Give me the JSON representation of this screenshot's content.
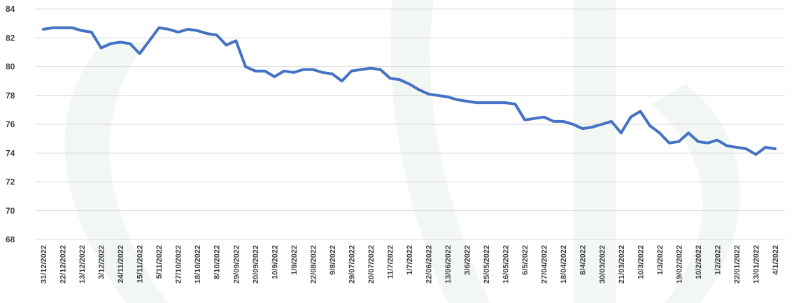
{
  "chart_data": {
    "type": "line",
    "categories": [
      "31/12/2022",
      null,
      "22/12/2022",
      null,
      "13/12/2022",
      null,
      "3/12/2022",
      null,
      "24/11/2022",
      null,
      "15/11/2022",
      null,
      "5/11/2022",
      null,
      "27/10/2022",
      null,
      "18/10/2022",
      null,
      "8/10/2022",
      null,
      "29/09/2022",
      null,
      "20/09/2022",
      null,
      "10/9/2022",
      null,
      "1/9/2022",
      null,
      "22/08/2022",
      null,
      "9/8/2022",
      null,
      "29/07/2022",
      null,
      "20/07/2022",
      null,
      "11/7/2022",
      null,
      "1/7/2022",
      null,
      "22/06/2022",
      null,
      "13/06/2022",
      null,
      "3/6/2022",
      null,
      "25/05/2022",
      null,
      "16/05/2022",
      null,
      "6/5/2022",
      null,
      "27/04/2022",
      null,
      "18/04/2022",
      null,
      "8/4/2022",
      null,
      "30/03/2022",
      null,
      "21/03/2022",
      null,
      "10/3/2022",
      null,
      "1/3/2022",
      null,
      "19/02/2022",
      null,
      "10/2/2022",
      null,
      "1/2/2022",
      null,
      "22/01/2022",
      null,
      "13/01/2022",
      null,
      "4/1/2022"
    ],
    "values": [
      82.6,
      82.7,
      82.7,
      82.7,
      82.5,
      82.4,
      81.3,
      81.6,
      81.7,
      81.6,
      80.9,
      81.8,
      82.7,
      82.6,
      82.4,
      82.6,
      82.5,
      82.3,
      82.2,
      81.5,
      81.8,
      80.0,
      79.7,
      79.7,
      79.3,
      79.7,
      79.6,
      79.8,
      79.8,
      79.6,
      79.5,
      79.0,
      79.7,
      79.8,
      79.9,
      79.8,
      79.2,
      79.1,
      78.8,
      78.4,
      78.1,
      78.0,
      77.9,
      77.7,
      77.6,
      77.5,
      77.5,
      77.5,
      77.5,
      77.4,
      76.3,
      76.4,
      76.5,
      76.2,
      76.2,
      76.0,
      75.7,
      75.8,
      76.0,
      76.2,
      75.4,
      76.5,
      76.9,
      75.9,
      75.4,
      74.7,
      74.8,
      75.4,
      74.8,
      74.7,
      74.9,
      74.5,
      74.4,
      74.3,
      73.9,
      74.4,
      74.3
    ],
    "color": "#4472c4",
    "ylim": [
      68,
      84
    ],
    "yticks": [
      68,
      70,
      72,
      74,
      76,
      78,
      80,
      82,
      84
    ],
    "grid": true
  }
}
